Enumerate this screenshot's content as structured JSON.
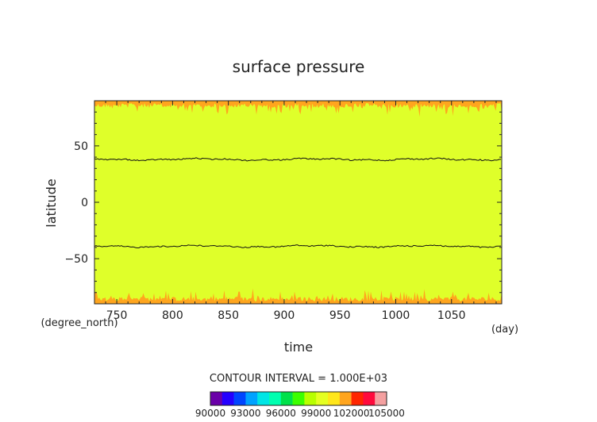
{
  "chart_data": {
    "type": "heatmap",
    "title": "surface pressure",
    "xlabel": "time",
    "ylabel": "latitude",
    "x_units": "(day)",
    "y_units": "(degree_north)",
    "xlim": [
      730,
      1095
    ],
    "ylim": [
      -90,
      90
    ],
    "x_ticks": [
      "750",
      "800",
      "850",
      "900",
      "950",
      "1000",
      "1050"
    ],
    "x_tick_values": [
      750,
      800,
      850,
      900,
      950,
      1000,
      1050
    ],
    "y_ticks": [
      "50",
      "0",
      "−50"
    ],
    "y_tick_values": [
      50,
      0,
      -50
    ],
    "grid": false,
    "contour_interval_text": "CONTOUR INTERVAL = 1.000E+03",
    "colorbar": {
      "labels": [
        "90000",
        "93000",
        "96000",
        "99000",
        "102000",
        "105000"
      ],
      "label_values": [
        90000,
        93000,
        96000,
        99000,
        102000,
        105000
      ],
      "min": 90000,
      "max": 105000,
      "interval": 1000,
      "colors": [
        "#6a00a8",
        "#2400ff",
        "#0045ff",
        "#00a2ff",
        "#00e5e5",
        "#00ffb0",
        "#00e14a",
        "#3cff00",
        "#b8ff00",
        "#e5ff22",
        "#ffe61a",
        "#ffa51e",
        "#ff2600",
        "#ff0a3c",
        "#f4a0a0"
      ]
    },
    "fields": [
      {
        "name": "interior",
        "value_range": [
          99000,
          102000
        ],
        "color": "#dfff2a"
      },
      {
        "name": "polar edges",
        "value_range": [
          102000,
          103000
        ],
        "color": "#ffa51e"
      }
    ],
    "contour_level": 102000,
    "contour_lines": [
      {
        "mean_latitude": 38
      },
      {
        "mean_latitude": -39
      }
    ]
  }
}
